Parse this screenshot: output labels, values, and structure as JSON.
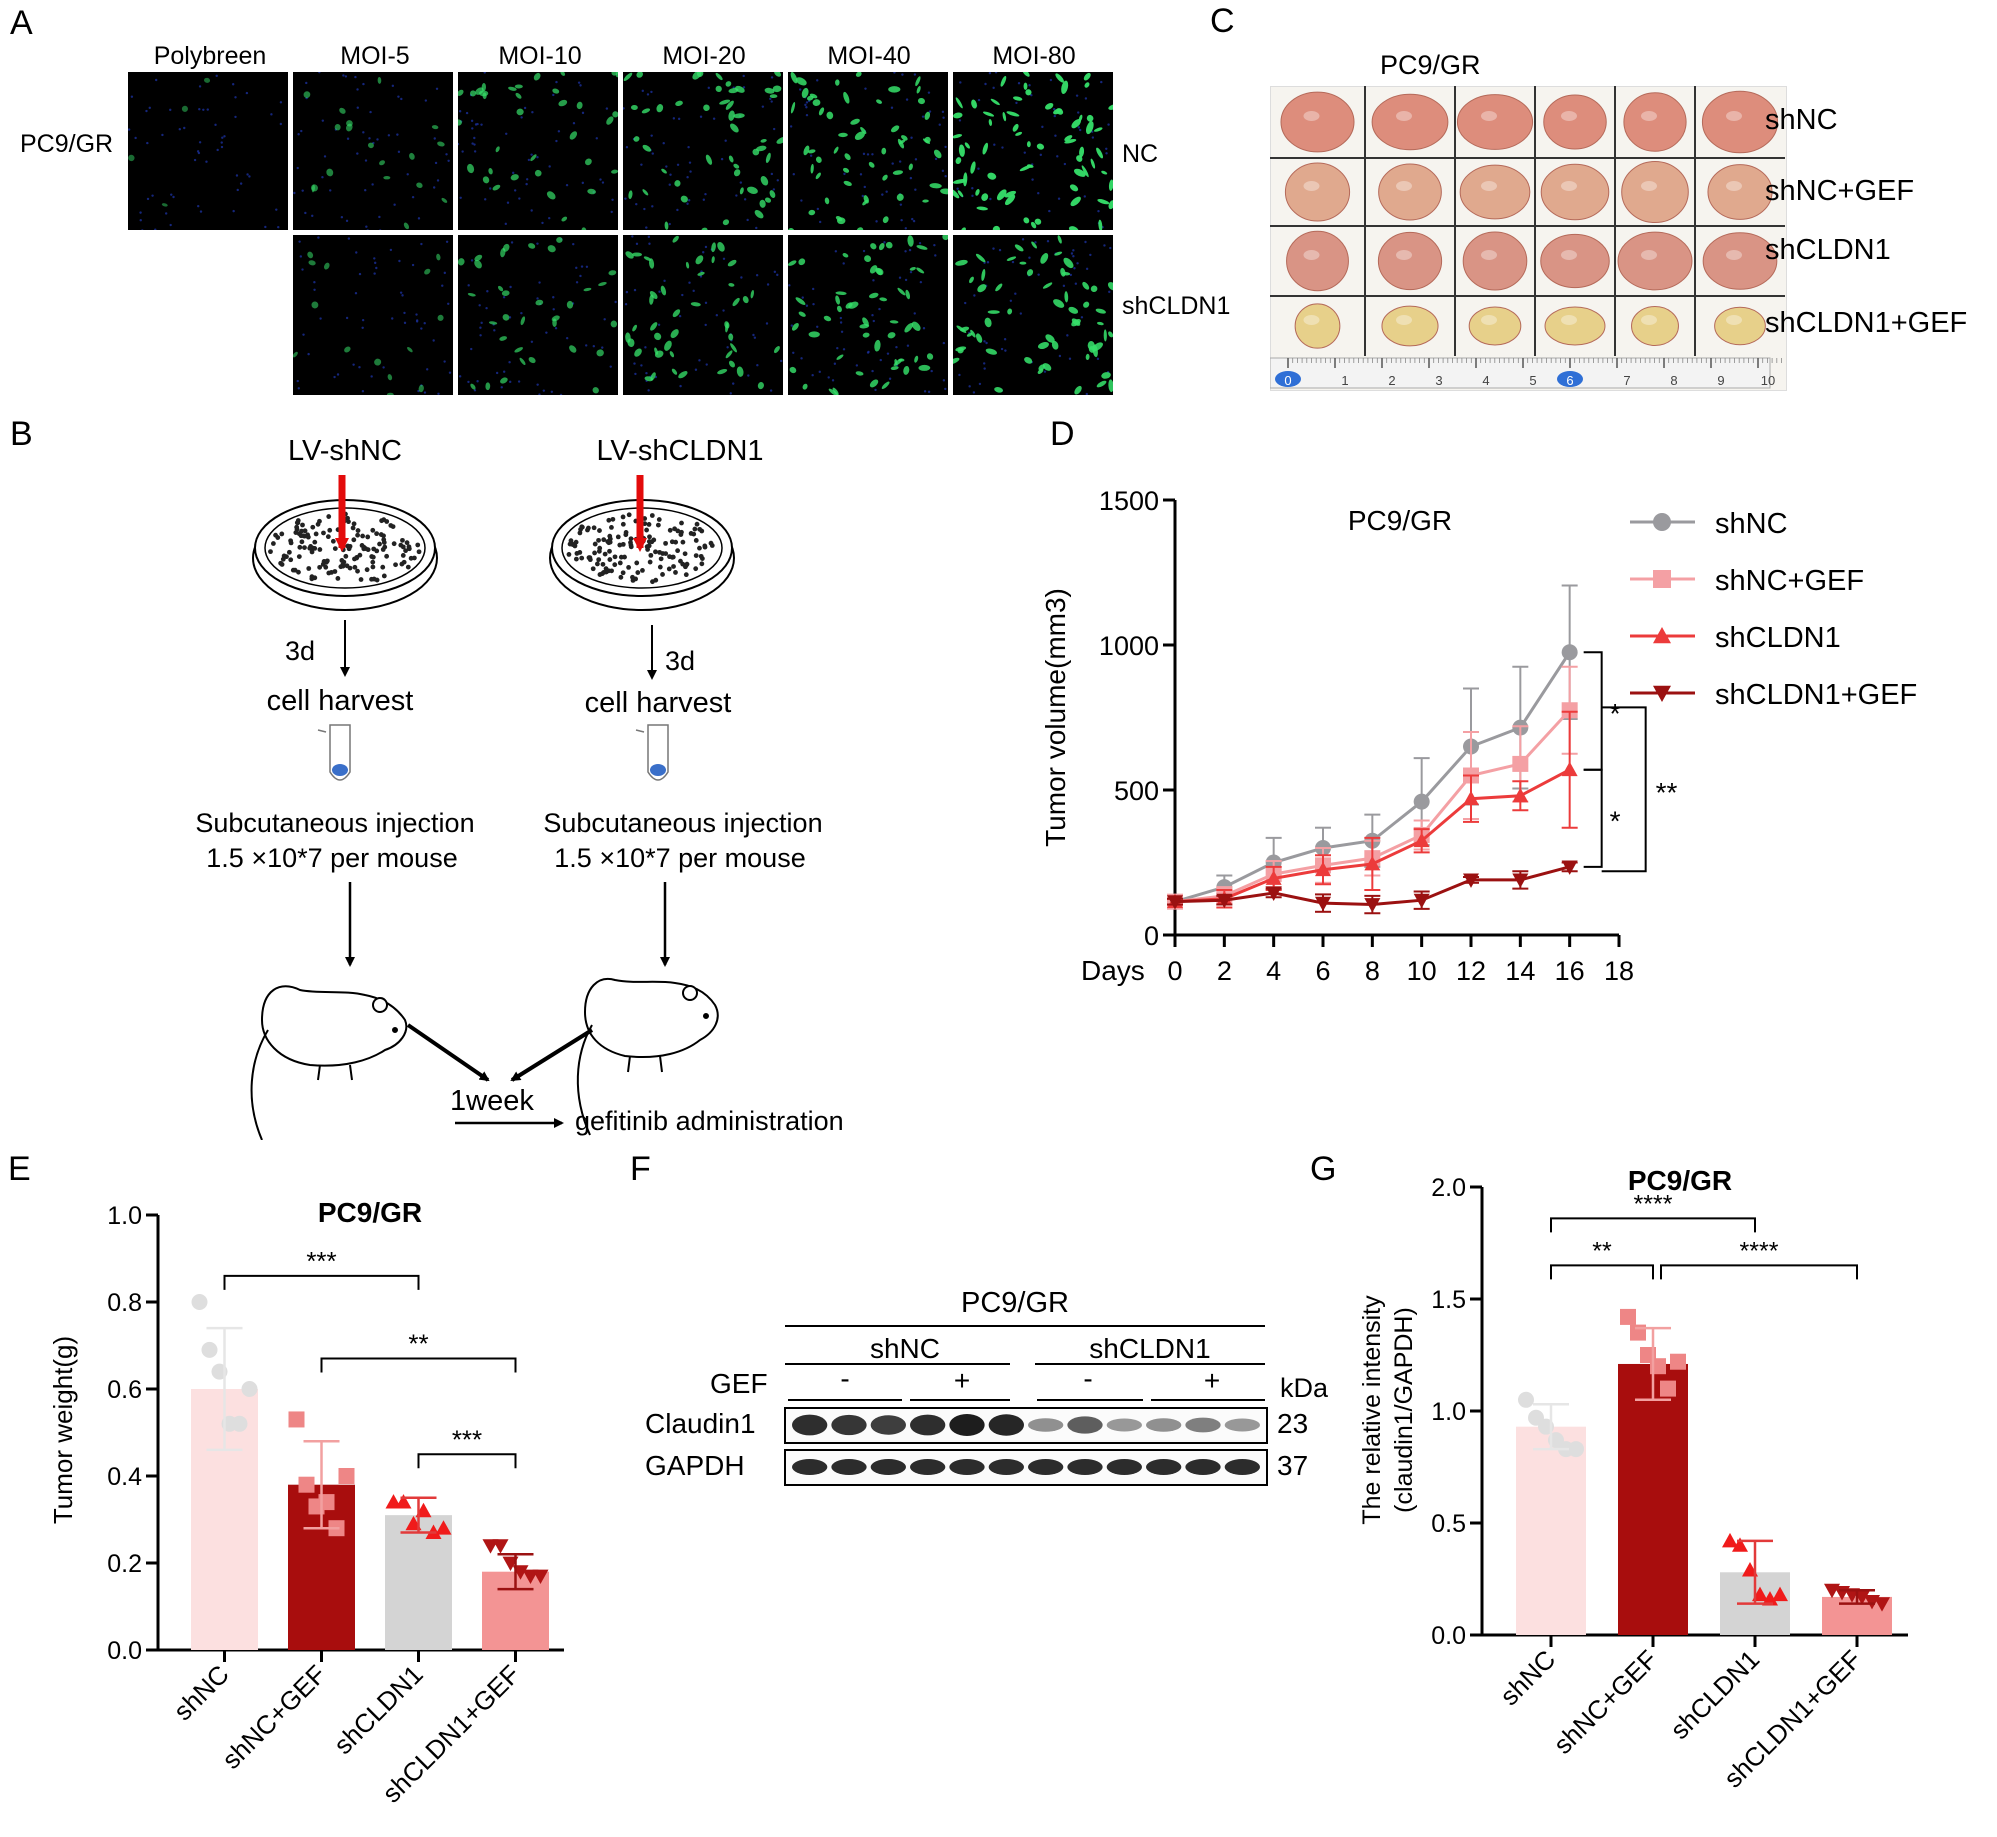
{
  "panels": {
    "A": "A",
    "B": "B",
    "C": "C",
    "D": "D",
    "E": "E",
    "F": "F",
    "G": "G"
  },
  "panelA": {
    "row_label": "PC9/GR",
    "columns": [
      "Polybreen",
      "MOI-5",
      "MOI-10",
      "MOI-20",
      "MOI-40",
      "MOI-80"
    ],
    "rows": [
      "NC",
      "shCLDN1"
    ],
    "intensity_nc": [
      0.05,
      0.25,
      0.5,
      0.7,
      0.8,
      1.0
    ],
    "intensity_sh": [
      0.0,
      0.2,
      0.45,
      0.65,
      0.75,
      0.85
    ]
  },
  "panelB": {
    "left_title": "LV-shNC",
    "right_title": "LV-shCLDN1",
    "time": "3d",
    "harvest": "cell harvest",
    "injection": "Subcutaneous injection",
    "dose": "1.5 ×10*7 per mouse",
    "week": "1week",
    "treatment": "gefitinib administration"
  },
  "panelC": {
    "title": "PC9/GR",
    "rows": [
      "shNC",
      "shNC+GEF",
      "shCLDN1",
      "shCLDN1+GEF"
    ],
    "ruler_ticks": [
      "0",
      "1",
      "2",
      "3",
      "4",
      "5",
      "6",
      "7",
      "8",
      "9",
      "10"
    ],
    "colors": {
      "shNC": "#dd8d7c",
      "shNC+GEF": "#e0a98e",
      "shCLDN1": "#d99485",
      "shCLDN1+GEF": "#e7d08a"
    }
  },
  "chart_data": [
    {
      "id": "D",
      "type": "line",
      "title": "PC9/GR",
      "xlabel": "Days",
      "ylabel": "Tumor volume(mm3)",
      "xlim": [
        0,
        18
      ],
      "ylim": [
        0,
        1500
      ],
      "xticks": [
        "0",
        "2",
        "4",
        "6",
        "8",
        "10",
        "12",
        "14",
        "16",
        "18"
      ],
      "yticks": [
        "0",
        "500",
        "1000",
        "1500"
      ],
      "x": [
        0,
        2,
        4,
        6,
        8,
        10,
        12,
        14,
        16
      ],
      "series": [
        {
          "name": "shNC",
          "color": "#9a9a9e",
          "marker": "circle",
          "values": [
            115,
            165,
            250,
            300,
            325,
            460,
            650,
            715,
            975
          ],
          "errors": [
            10,
            40,
            85,
            70,
            90,
            150,
            200,
            210,
            230
          ]
        },
        {
          "name": "shNC+GEF",
          "color": "#f4a0a4",
          "marker": "square",
          "values": [
            115,
            135,
            210,
            240,
            265,
            345,
            550,
            590,
            775
          ],
          "errors": [
            10,
            30,
            45,
            60,
            60,
            50,
            150,
            130,
            150
          ]
        },
        {
          "name": "shCLDN1",
          "color": "#ec3b3b",
          "marker": "triangle-up",
          "values": [
            115,
            125,
            195,
            225,
            245,
            325,
            470,
            480,
            570
          ],
          "errors": [
            10,
            30,
            40,
            50,
            90,
            40,
            80,
            50,
            200
          ]
        },
        {
          "name": "shCLDN1+GEF",
          "color": "#9b1111",
          "marker": "triangle-down",
          "values": [
            115,
            120,
            145,
            110,
            105,
            120,
            190,
            190,
            235
          ],
          "errors": [
            10,
            15,
            15,
            30,
            30,
            30,
            10,
            30,
            15
          ]
        }
      ],
      "annotations": [
        "*",
        "*",
        "**"
      ]
    },
    {
      "id": "E",
      "type": "bar",
      "title": "PC9/GR",
      "ylabel": "Tumor weight(g)",
      "ylim": [
        0,
        1.0
      ],
      "yticks": [
        "0.0",
        "0.2",
        "0.4",
        "0.6",
        "0.8",
        "1.0"
      ],
      "categories": [
        "shNC",
        "shNC+GEF",
        "shCLDN1",
        "shCLDN1+GEF"
      ],
      "values": [
        0.6,
        0.38,
        0.31,
        0.18
      ],
      "errors": [
        0.14,
        0.1,
        0.04,
        0.04
      ],
      "colors": [
        "#fce0e0",
        "#a80d0d",
        "#d4d4d4",
        "#f39494"
      ],
      "point_colors": [
        "#dedede",
        "#ee8686",
        "#f01b1b",
        "#b01515"
      ],
      "points": [
        [
          0.8,
          0.69,
          0.64,
          0.52,
          0.52,
          0.6
        ],
        [
          0.53,
          0.38,
          0.33,
          0.34,
          0.28,
          0.4
        ],
        [
          0.34,
          0.34,
          0.29,
          0.32,
          0.27,
          0.28
        ],
        [
          0.24,
          0.24,
          0.2,
          0.18,
          0.17,
          0.17
        ]
      ],
      "significance": [
        "***",
        "**",
        "***"
      ]
    },
    {
      "id": "G",
      "type": "bar",
      "title": "PC9/GR",
      "ylabel": "The relative intensity",
      "ylabel2": "(claudin1/GAPDH)",
      "ylim": [
        0,
        2.0
      ],
      "yticks": [
        "0.0",
        "0.5",
        "1.0",
        "1.5",
        "2.0"
      ],
      "categories": [
        "shNC",
        "shNC+GEF",
        "shCLDN1",
        "shCLDN1+GEF"
      ],
      "values": [
        0.93,
        1.21,
        0.28,
        0.17
      ],
      "errors": [
        0.1,
        0.16,
        0.14,
        0.03
      ],
      "colors": [
        "#fce0e0",
        "#a80d0d",
        "#d4d4d4",
        "#f39494"
      ],
      "point_colors": [
        "#dedede",
        "#ee8686",
        "#f01b1b",
        "#b01515"
      ],
      "points": [
        [
          1.05,
          0.97,
          0.93,
          0.87,
          0.83,
          0.83
        ],
        [
          1.42,
          1.35,
          1.25,
          1.2,
          1.1,
          1.22
        ],
        [
          0.42,
          0.4,
          0.29,
          0.18,
          0.16,
          0.18
        ],
        [
          0.2,
          0.19,
          0.18,
          0.17,
          0.15,
          0.14
        ]
      ],
      "significance": [
        "****",
        "**",
        "****"
      ]
    }
  ],
  "panelF": {
    "title": "PC9/GR",
    "group1": "shNC",
    "group2": "shCLDN1",
    "gef_label": "GEF",
    "minus": "-",
    "plus": "+",
    "kda_label": "kDa",
    "protein1": "Claudin1",
    "protein1_kda": "23",
    "protein2": "GAPDH",
    "protein2_kda": "37",
    "claudin_band_intensity": [
      0.9,
      0.85,
      0.8,
      0.9,
      1.0,
      0.95,
      0.3,
      0.6,
      0.25,
      0.3,
      0.4,
      0.25
    ],
    "gapdh_band_intensity": [
      0.9,
      0.9,
      0.9,
      0.9,
      0.9,
      0.9,
      0.9,
      0.9,
      0.9,
      0.9,
      0.9,
      0.9
    ]
  }
}
